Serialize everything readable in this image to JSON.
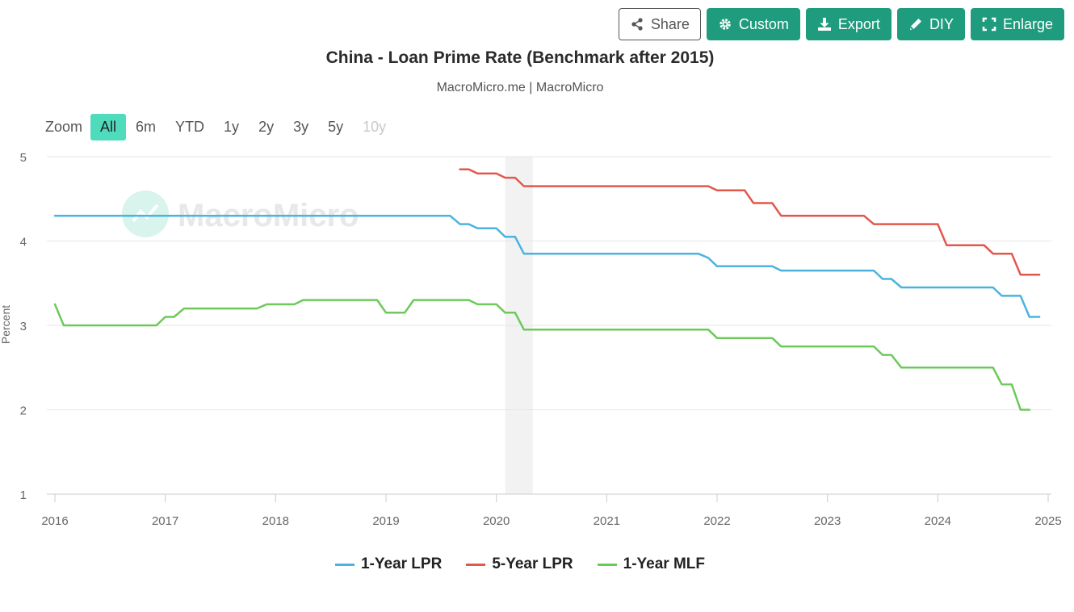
{
  "toolbar": {
    "share_label": "Share",
    "custom_label": "Custom",
    "export_label": "Export",
    "diy_label": "DIY",
    "enlarge_label": "Enlarge",
    "button_color": "#1f9c7e"
  },
  "zoom": {
    "label": "Zoom",
    "options": [
      "All",
      "6m",
      "YTD",
      "1y",
      "2y",
      "3y",
      "5y",
      "10y"
    ],
    "active": "All",
    "disabled": [
      "10y"
    ]
  },
  "watermark": "MacroMicro",
  "chart_data": {
    "type": "line",
    "title": "China - Loan Prime Rate (Benchmark after 2015)",
    "subtitle": "MacroMicro.me | MacroMicro",
    "ylabel": "Percent",
    "xlabel": "",
    "xlim": [
      2016.0,
      2025.0
    ],
    "ylim": [
      1,
      5
    ],
    "yticks": [
      "1",
      "2",
      "3",
      "4",
      "5"
    ],
    "xticks": [
      "2016",
      "2017",
      "2018",
      "2019",
      "2020",
      "2021",
      "2022",
      "2023",
      "2024",
      "2025"
    ],
    "grid": true,
    "legend_position": "bottom",
    "shaded_region": [
      2020.08,
      2020.33
    ],
    "series": [
      {
        "name": "1-Year LPR",
        "color": "#4ab3e0",
        "points": [
          [
            2016.0,
            4.3
          ],
          [
            2019.58,
            4.3
          ],
          [
            2019.67,
            4.2
          ],
          [
            2019.75,
            4.2
          ],
          [
            2019.83,
            4.15
          ],
          [
            2019.92,
            4.15
          ],
          [
            2020.0,
            4.15
          ],
          [
            2020.08,
            4.05
          ],
          [
            2020.17,
            4.05
          ],
          [
            2020.25,
            3.85
          ],
          [
            2021.83,
            3.85
          ],
          [
            2021.92,
            3.8
          ],
          [
            2022.0,
            3.7
          ],
          [
            2022.5,
            3.7
          ],
          [
            2022.58,
            3.65
          ],
          [
            2023.42,
            3.65
          ],
          [
            2023.5,
            3.55
          ],
          [
            2023.58,
            3.55
          ],
          [
            2023.67,
            3.45
          ],
          [
            2024.42,
            3.45
          ],
          [
            2024.5,
            3.45
          ],
          [
            2024.58,
            3.35
          ],
          [
            2024.75,
            3.35
          ],
          [
            2024.83,
            3.1
          ],
          [
            2024.92,
            3.1
          ]
        ]
      },
      {
        "name": "5-Year LPR",
        "color": "#e2574c",
        "points": [
          [
            2019.67,
            4.85
          ],
          [
            2019.75,
            4.85
          ],
          [
            2019.83,
            4.8
          ],
          [
            2019.92,
            4.8
          ],
          [
            2020.0,
            4.8
          ],
          [
            2020.08,
            4.75
          ],
          [
            2020.17,
            4.75
          ],
          [
            2020.25,
            4.65
          ],
          [
            2021.92,
            4.65
          ],
          [
            2022.0,
            4.6
          ],
          [
            2022.25,
            4.6
          ],
          [
            2022.33,
            4.45
          ],
          [
            2022.5,
            4.45
          ],
          [
            2022.58,
            4.3
          ],
          [
            2023.33,
            4.3
          ],
          [
            2023.42,
            4.2
          ],
          [
            2024.0,
            4.2
          ],
          [
            2024.08,
            3.95
          ],
          [
            2024.42,
            3.95
          ],
          [
            2024.5,
            3.85
          ],
          [
            2024.67,
            3.85
          ],
          [
            2024.75,
            3.6
          ],
          [
            2024.92,
            3.6
          ]
        ]
      },
      {
        "name": "1-Year MLF",
        "color": "#6cc95a",
        "points": [
          [
            2016.0,
            3.25
          ],
          [
            2016.08,
            3.0
          ],
          [
            2016.92,
            3.0
          ],
          [
            2017.0,
            3.1
          ],
          [
            2017.08,
            3.1
          ],
          [
            2017.17,
            3.2
          ],
          [
            2017.83,
            3.2
          ],
          [
            2017.92,
            3.25
          ],
          [
            2018.17,
            3.25
          ],
          [
            2018.25,
            3.3
          ],
          [
            2018.92,
            3.3
          ],
          [
            2019.0,
            3.15
          ],
          [
            2019.17,
            3.15
          ],
          [
            2019.25,
            3.3
          ],
          [
            2019.75,
            3.3
          ],
          [
            2019.83,
            3.25
          ],
          [
            2020.0,
            3.25
          ],
          [
            2020.08,
            3.15
          ],
          [
            2020.17,
            3.15
          ],
          [
            2020.25,
            2.95
          ],
          [
            2021.92,
            2.95
          ],
          [
            2022.0,
            2.85
          ],
          [
            2022.5,
            2.85
          ],
          [
            2022.58,
            2.75
          ],
          [
            2023.42,
            2.75
          ],
          [
            2023.5,
            2.65
          ],
          [
            2023.58,
            2.65
          ],
          [
            2023.67,
            2.5
          ],
          [
            2024.5,
            2.5
          ],
          [
            2024.58,
            2.3
          ],
          [
            2024.67,
            2.3
          ],
          [
            2024.75,
            2.0
          ],
          [
            2024.83,
            2.0
          ]
        ]
      }
    ]
  }
}
